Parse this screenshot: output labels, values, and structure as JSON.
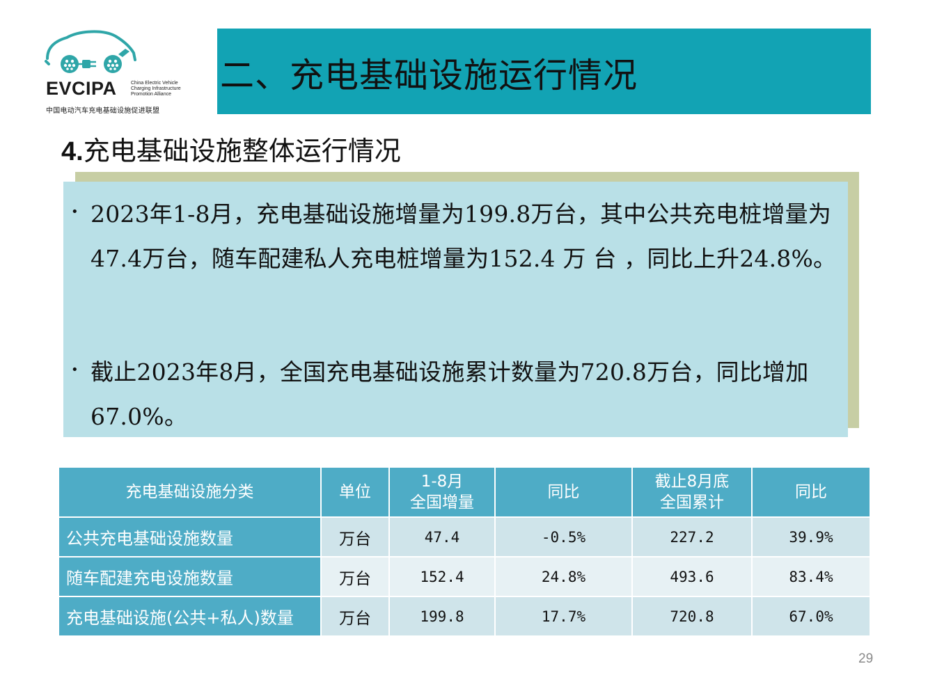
{
  "logo": {
    "wordmark": "EVCIPA",
    "english_lines": [
      "China Electric Vehicle",
      "Charging Infrastructure",
      "Promotion Alliance"
    ],
    "chinese_name": "中国电动汽车充电基础设施促进联盟"
  },
  "banner": {
    "title": "二、充电基础设施运行情况"
  },
  "section": {
    "number": "4.",
    "title": "充电基础设施整体运行情况"
  },
  "bullets": [
    "2023年1-8月，充电基础设施增量为199.8万台，其中公共充电桩增量为47.4万台，随车配建私人充电桩增量为152.4 万 台 ，同比上升24.8%。",
    "截止2023年8月，全国充电基础设施累计数量为720.8万台，同比增加67.0%。"
  ],
  "table": {
    "headers": [
      "充电基础设施分类",
      "单位",
      "1-8月\n全国增量",
      "同比",
      "截止8月底\n全国累计",
      "同比"
    ],
    "rows": [
      [
        "公共充电基础设施数量",
        "万台",
        "47.4",
        "-0.5%",
        "227.2",
        "39.9%"
      ],
      [
        "随车配建充电设施数量",
        "万台",
        "152.4",
        "24.8%",
        "493.6",
        "83.4%"
      ],
      [
        "充电基础设施(公共+私人)数量",
        "万台",
        "199.8",
        "17.7%",
        "720.8",
        "67.0%"
      ]
    ]
  },
  "page_number": "29",
  "colors": {
    "banner": "#12a3b4",
    "panel": "#b9e0e7",
    "panel_shadow": "#c7cea4",
    "table_header": "#4eacc6",
    "table_cell": "#cfe4ea",
    "logo_teal": "#2fa6a8"
  }
}
